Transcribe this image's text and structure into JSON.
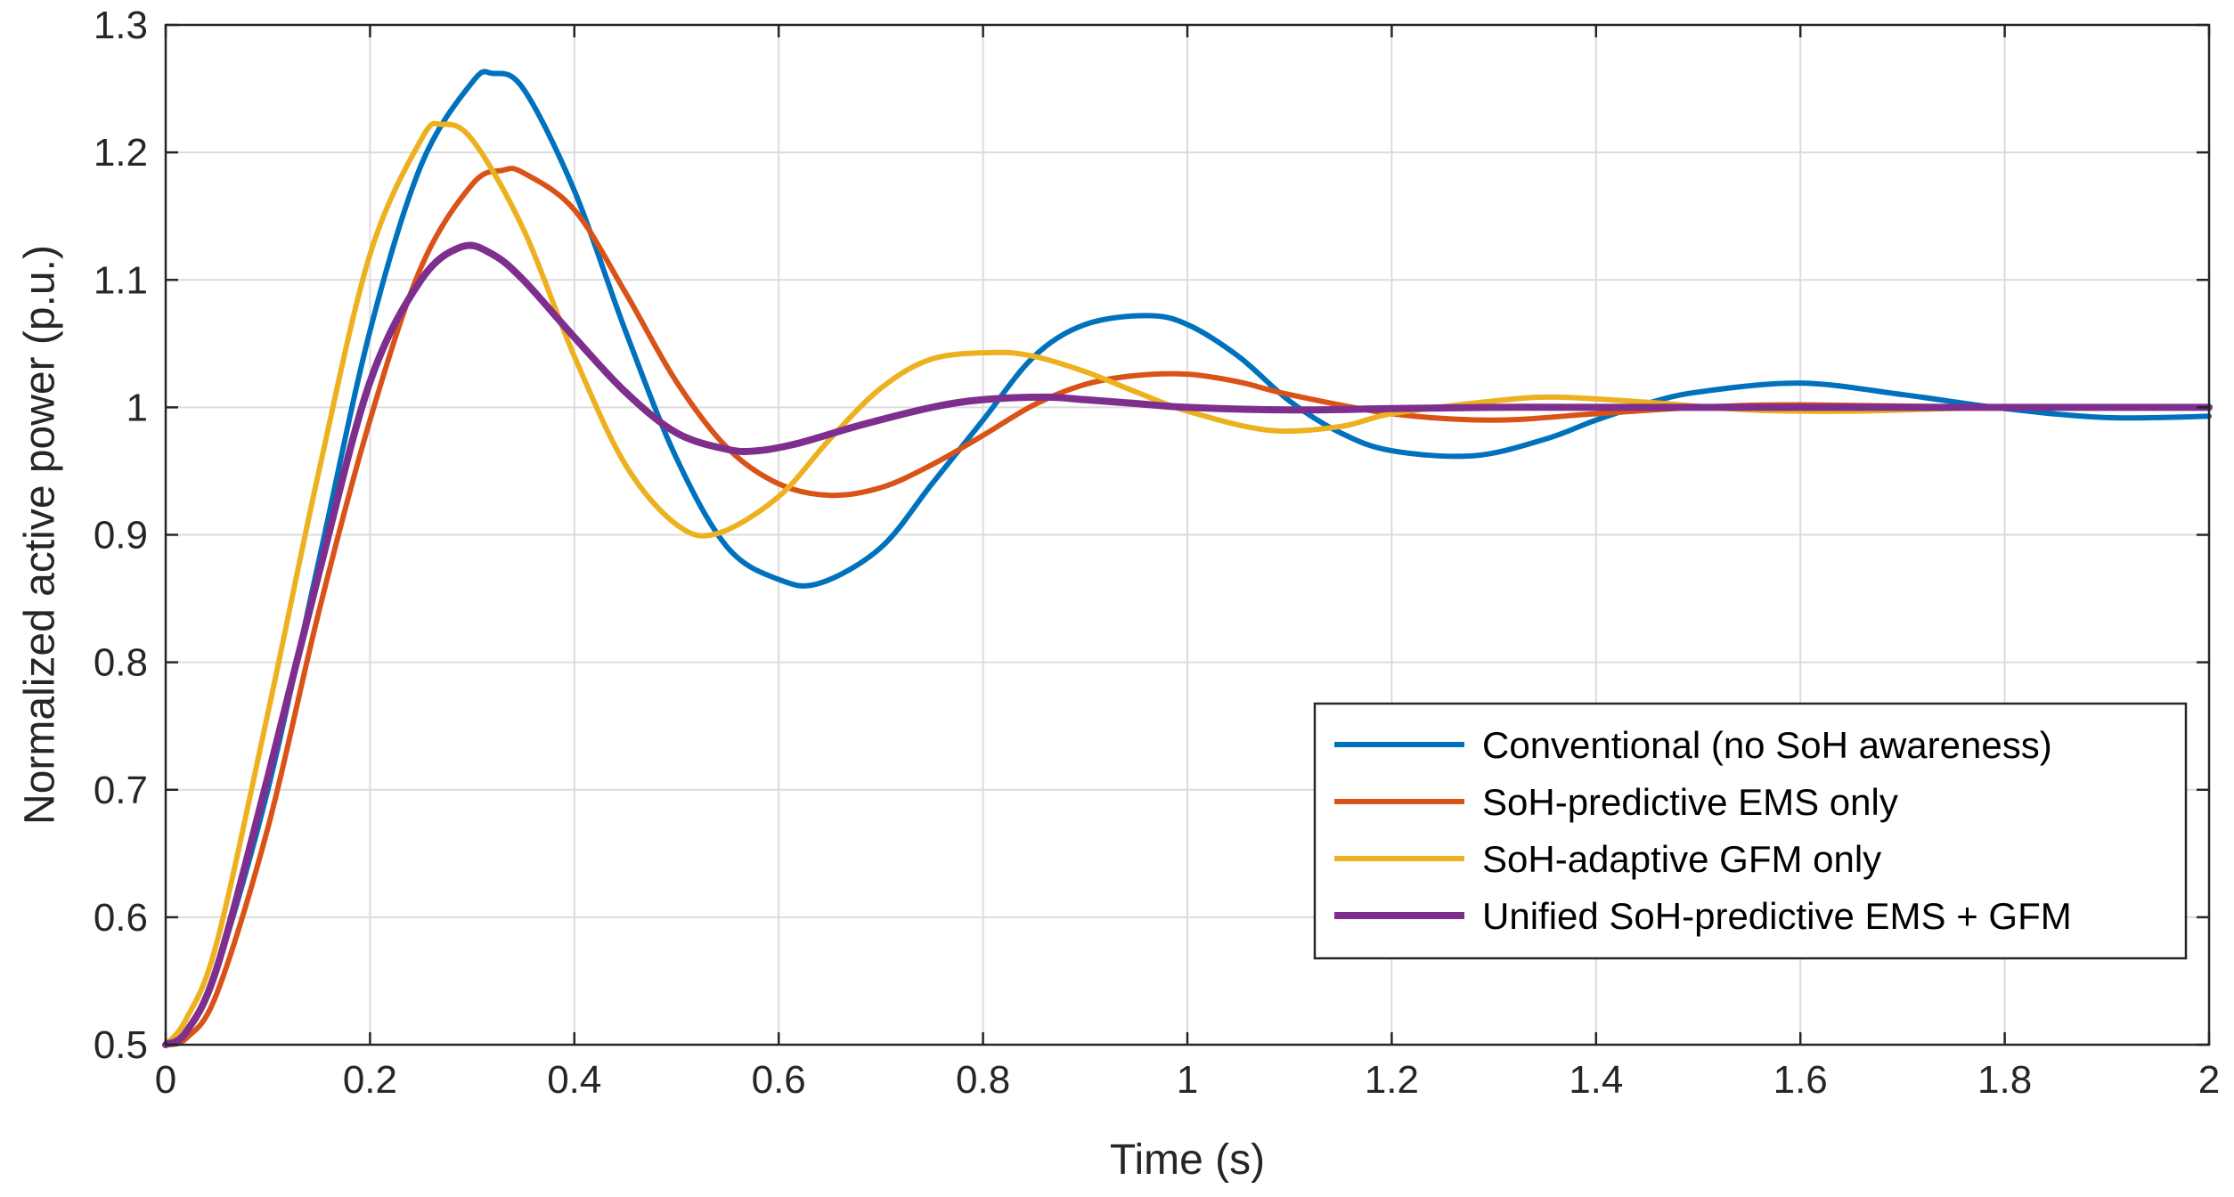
{
  "chart_data": {
    "type": "line",
    "title": "",
    "xlabel": "Time (s)",
    "ylabel": "Normalized active power (p.u.)",
    "xlim": [
      0,
      2
    ],
    "ylim": [
      0.5,
      1.3
    ],
    "xticks": [
      0,
      0.2,
      0.4,
      0.6,
      0.8,
      1,
      1.2,
      1.4,
      1.6,
      1.8,
      2
    ],
    "xtick_labels": [
      "0",
      "0.2",
      "0.4",
      "0.6",
      "0.8",
      "1",
      "1.2",
      "1.4",
      "1.6",
      "1.8",
      "2"
    ],
    "yticks": [
      0.5,
      0.6,
      0.7,
      0.8,
      0.9,
      1,
      1.1,
      1.2,
      1.3
    ],
    "ytick_labels": [
      "0.5",
      "0.6",
      "0.7",
      "0.8",
      "0.9",
      "1",
      "1.1",
      "1.2",
      "1.3"
    ],
    "grid": true,
    "legend_position": "lower-right",
    "series": [
      {
        "name": "Conventional (no SoH awareness)",
        "color": "#0072BD",
        "x": [
          0,
          0.02,
          0.05,
          0.1,
          0.15,
          0.2,
          0.25,
          0.3,
          0.32,
          0.35,
          0.4,
          0.45,
          0.5,
          0.55,
          0.6,
          0.64,
          0.7,
          0.75,
          0.8,
          0.85,
          0.9,
          0.96,
          1.0,
          1.05,
          1.1,
          1.15,
          1.2,
          1.28,
          1.35,
          1.4,
          1.45,
          1.5,
          1.6,
          1.7,
          1.8,
          1.9,
          2.0
        ],
        "y": [
          0.5,
          0.51,
          0.56,
          0.7,
          0.88,
          1.06,
          1.19,
          1.255,
          1.262,
          1.25,
          1.17,
          1.06,
          0.96,
          0.89,
          0.865,
          0.862,
          0.89,
          0.94,
          0.99,
          1.04,
          1.065,
          1.072,
          1.065,
          1.04,
          1.005,
          0.98,
          0.966,
          0.962,
          0.975,
          0.99,
          1.003,
          1.012,
          1.019,
          1.01,
          0.999,
          0.992,
          0.993
        ]
      },
      {
        "name": "SoH-predictive EMS only",
        "color": "#D95319",
        "x": [
          0,
          0.02,
          0.05,
          0.1,
          0.15,
          0.2,
          0.25,
          0.3,
          0.33,
          0.35,
          0.4,
          0.45,
          0.5,
          0.55,
          0.6,
          0.65,
          0.7,
          0.75,
          0.8,
          0.85,
          0.9,
          0.95,
          1.0,
          1.05,
          1.1,
          1.2,
          1.3,
          1.4,
          1.5,
          1.6,
          1.8,
          2.0
        ],
        "y": [
          0.5,
          0.505,
          0.54,
          0.67,
          0.84,
          0.99,
          1.11,
          1.175,
          1.186,
          1.184,
          1.155,
          1.09,
          1.02,
          0.968,
          0.94,
          0.931,
          0.937,
          0.955,
          0.978,
          1.002,
          1.018,
          1.025,
          1.026,
          1.02,
          1.01,
          0.995,
          0.99,
          0.995,
          1.0,
          1.002,
          1.0,
          1.0
        ]
      },
      {
        "name": "SoH-adaptive GFM only",
        "color": "#EDB120",
        "x": [
          0,
          0.02,
          0.05,
          0.1,
          0.15,
          0.2,
          0.25,
          0.27,
          0.3,
          0.35,
          0.4,
          0.45,
          0.5,
          0.54,
          0.6,
          0.65,
          0.7,
          0.75,
          0.81,
          0.85,
          0.9,
          0.95,
          1.0,
          1.08,
          1.15,
          1.2,
          1.3,
          1.36,
          1.45,
          1.55,
          1.65,
          1.8,
          2.0
        ],
        "y": [
          0.5,
          0.52,
          0.58,
          0.76,
          0.95,
          1.12,
          1.21,
          1.222,
          1.21,
          1.14,
          1.04,
          0.955,
          0.908,
          0.901,
          0.93,
          0.975,
          1.015,
          1.038,
          1.043,
          1.04,
          1.028,
          1.012,
          0.997,
          0.982,
          0.985,
          0.995,
          1.005,
          1.008,
          1.004,
          0.998,
          0.997,
          1.0,
          1.0
        ]
      },
      {
        "name": "Unified SoH-predictive EMS + GFM",
        "color": "#7E2F8E",
        "x": [
          0,
          0.02,
          0.05,
          0.1,
          0.15,
          0.2,
          0.25,
          0.29,
          0.32,
          0.35,
          0.4,
          0.45,
          0.5,
          0.55,
          0.58,
          0.62,
          0.68,
          0.75,
          0.8,
          0.86,
          0.9,
          0.95,
          1.0,
          1.1,
          1.2,
          1.3,
          1.4,
          1.6,
          1.8,
          2.0
        ],
        "y": [
          0.5,
          0.51,
          0.56,
          0.71,
          0.87,
          1.02,
          1.1,
          1.126,
          1.12,
          1.1,
          1.055,
          1.012,
          0.98,
          0.967,
          0.966,
          0.972,
          0.986,
          1.0,
          1.006,
          1.008,
          1.006,
          1.003,
          1.0,
          0.998,
          0.999,
          1.0,
          1.0,
          1.0,
          1.0,
          1.0
        ]
      }
    ]
  }
}
